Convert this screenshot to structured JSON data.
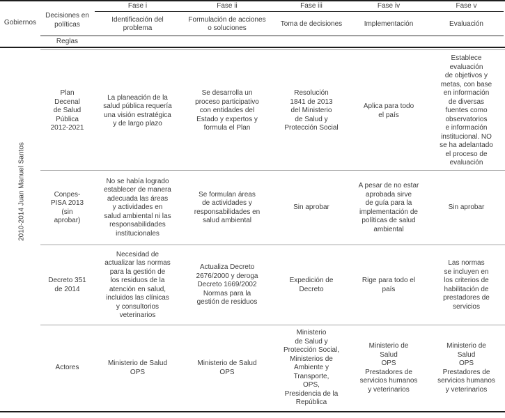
{
  "colors": {
    "rule_dark": "#1d1d1d",
    "rule_gray": "#a3a3a3",
    "text": "#3a3a3a",
    "background": "#ffffff"
  },
  "table": {
    "header": {
      "gobiernos": "Gobiernos",
      "decisiones": "Decisiones en\npolíticas",
      "reglas": "Reglas",
      "fases": [
        {
          "label": "Fase i",
          "sublabel": "Identificación del\nproblema"
        },
        {
          "label": "Fase ii",
          "sublabel": "Formulación de acciones\no soluciones"
        },
        {
          "label": "Fase iii",
          "sublabel": "Toma de decisiones"
        },
        {
          "label": "Fase iv",
          "sublabel": "Implementación"
        },
        {
          "label": "Fase v",
          "sublabel": "Evaluación"
        }
      ]
    },
    "gobierno_label": "2010-2014 Juan Manuel Santos",
    "rows": [
      {
        "policy": "Plan\nDecenal\nde Salud\nPública\n2012-2021",
        "fase_i": "La planeación de la\nsalud pública requería\nuna visión estratégica\ny de largo plazo",
        "fase_ii": "Se desarrolla un\nproceso participativo\ncon entidades del\nEstado y expertos y\nformula el Plan",
        "fase_iii": "Resolución\n1841 de 2013\ndel Ministerio\nde Salud y\nProtección Social",
        "fase_iv": "Aplica para todo\nel país",
        "fase_v": "Establece\nevaluación\nde objetivos y\nmetas, con base\nen información\nde diversas\nfuentes como\nobservatorios\ne información\ninstitucional. NO\nse ha adelantado\nel proceso de\nevaluación"
      },
      {
        "policy": "Conpes-\nPISA 2013\n(sin\naprobar)",
        "fase_i": "No se había logrado\nestablecer de manera\nadecuada las áreas\ny actividades en\nsalud ambiental ni las\nresponsabilidades\ninstitucionales",
        "fase_ii": "Se formulan áreas\nde actividades y\nresponsabilidades en\nsalud ambiental",
        "fase_iii": "Sin aprobar",
        "fase_iv": "A pesar de no estar\naprobada sirve\nde guía para la\nimplementación de\npolíticas de salud\nambiental",
        "fase_v": "Sin aprobar"
      },
      {
        "policy": "Decreto 351\nde 2014",
        "fase_i": "Necesidad de\nactualizar las normas\npara la gestión de\nlos residuos de la\natención en salud,\nincluidos las clínicas\ny consultorios\nveterinarios",
        "fase_ii": "Actualiza Decreto\n2676/2000 y deroga\nDecreto 1669/2002\nNormas para la\ngestión de residuos",
        "fase_iii": "Expedición de\nDecreto",
        "fase_iv": "Rige para todo el\npaís",
        "fase_v": "Las normas\nse incluyen en\nlos criterios de\nhabilitación de\nprestadores de\nservicios"
      },
      {
        "policy": "Actores",
        "fase_i": "Ministerio de Salud\nOPS",
        "fase_ii": "Ministerio de Salud\nOPS",
        "fase_iii": "Ministerio\nde Salud y\nProtección Social,\nMinisterios de\nAmbiente y\nTransporte,\nOPS,\nPresidencia de la\nRepública",
        "fase_iv": "Ministerio de\nSalud\nOPS\nPrestadores de\nservicios humanos\ny veterinarios",
        "fase_v": "Ministerio de\nSalud\nOPS\nPrestadores de\nservicios humanos\ny veterinarios"
      }
    ]
  }
}
